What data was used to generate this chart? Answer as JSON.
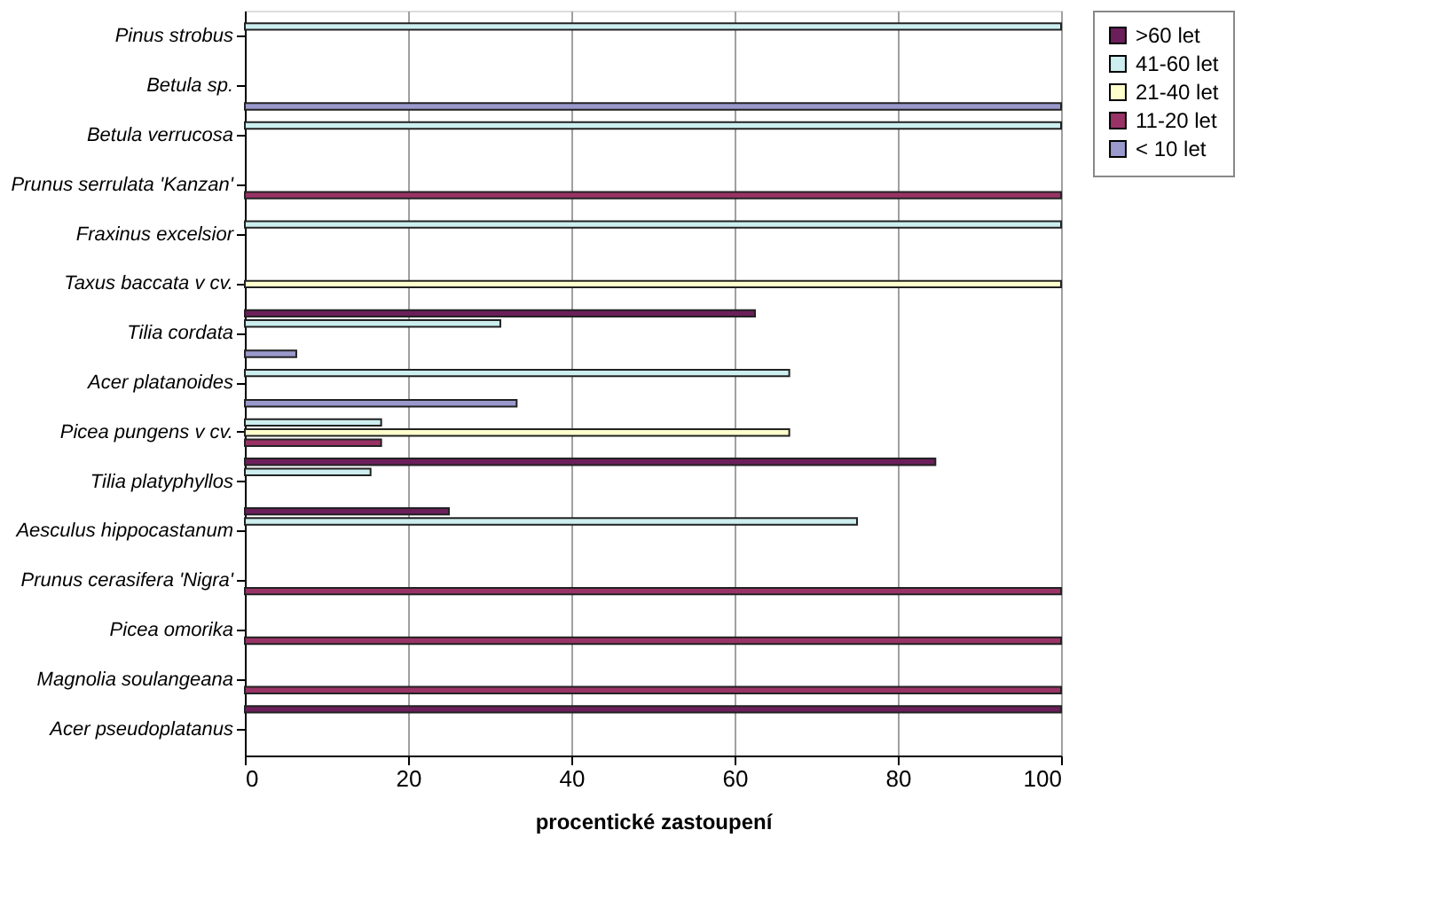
{
  "chart_data": {
    "type": "bar",
    "orientation": "horizontal",
    "xlabel": "procentické zastoupení",
    "categories": [
      "Pinus strobus",
      "Betula sp.",
      "Betula verrucosa",
      "Prunus serrulata 'Kanzan'",
      "Fraxinus excelsior",
      "Taxus baccata v cv.",
      "Tilia cordata",
      "Acer platanoides",
      "Picea pungens v cv.",
      "Tilia platyphyllos",
      "Aesculus hippocastanum",
      "Prunus cerasifera 'Nigra'",
      "Picea omorika",
      "Magnolia soulangeana",
      "Acer pseudoplatanus"
    ],
    "series": [
      {
        "name": ">60 let",
        "color": "#6b1f5a",
        "values": [
          null,
          null,
          null,
          null,
          null,
          null,
          62.5,
          null,
          null,
          84.6,
          25,
          null,
          null,
          null,
          100
        ]
      },
      {
        "name": "41-60 let",
        "color": "#cceeee",
        "values": [
          100,
          null,
          100,
          null,
          100,
          null,
          31.3,
          66.7,
          16.7,
          15.4,
          75,
          null,
          null,
          null,
          null
        ]
      },
      {
        "name": "21-40 let",
        "color": "#ffffcc",
        "values": [
          null,
          null,
          null,
          null,
          null,
          100,
          null,
          null,
          66.7,
          null,
          null,
          null,
          null,
          null,
          null
        ]
      },
      {
        "name": "11-20 let",
        "color": "#993366",
        "values": [
          null,
          null,
          null,
          100,
          null,
          null,
          null,
          null,
          16.7,
          null,
          null,
          100,
          100,
          100,
          null
        ]
      },
      {
        "name": "< 10 let",
        "color": "#9999cc",
        "values": [
          null,
          100,
          null,
          null,
          null,
          null,
          6.3,
          33.3,
          null,
          null,
          null,
          null,
          null,
          null,
          null
        ]
      }
    ],
    "xlim": [
      0,
      100
    ],
    "xticks": [
      0,
      20,
      40,
      60,
      80,
      100
    ],
    "grid": "x",
    "legend": "right"
  }
}
